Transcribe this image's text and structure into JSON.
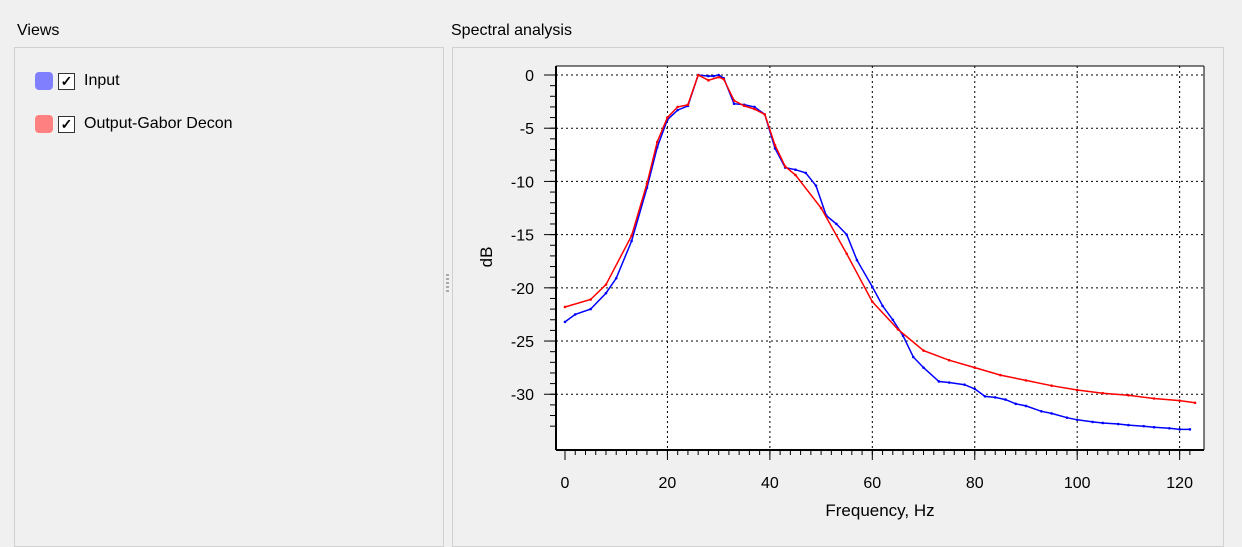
{
  "views": {
    "title": "Views",
    "items": [
      {
        "label": "Input",
        "color": "#8080ff",
        "checked": true
      },
      {
        "label": "Output-Gabor Decon",
        "color": "#ff8080",
        "checked": true
      }
    ]
  },
  "spectral": {
    "title": "Spectral analysis"
  },
  "check_glyph": "✓",
  "chart_data": {
    "type": "line",
    "title": "",
    "xlabel": "Frequency, Hz",
    "ylabel": "dB",
    "xlim": [
      0,
      123
    ],
    "ylim": [
      -33.5,
      0.8
    ],
    "xticks": [
      0,
      20,
      40,
      60,
      80,
      100,
      120
    ],
    "xtick_labels": [
      "0",
      "20",
      "40",
      "60",
      "80",
      "100",
      "120"
    ],
    "yticks": [
      0,
      -5,
      -10,
      -15,
      -20,
      -25,
      -30
    ],
    "ytick_labels": [
      "0",
      "-5",
      "-10",
      "-15",
      "-20",
      "-25",
      "-30"
    ],
    "grid": true,
    "series": [
      {
        "color": "#0000ff",
        "x": [
          0,
          2,
          5,
          8,
          10,
          13,
          16,
          18,
          20,
          22,
          24,
          26,
          28,
          29,
          30,
          31,
          33,
          35,
          37,
          39,
          41,
          43,
          45,
          47,
          49,
          51,
          53,
          55,
          57,
          60,
          62,
          64,
          66,
          68,
          70,
          73,
          75,
          78,
          80,
          82,
          84,
          86,
          88,
          90,
          93,
          95,
          98,
          100,
          103,
          105,
          108,
          110,
          113,
          115,
          118,
          120,
          122
        ],
        "y": [
          -23.2,
          -22.5,
          -22.0,
          -20.5,
          -19.1,
          -15.6,
          -10.6,
          -6.8,
          -4.2,
          -3.3,
          -2.9,
          0.0,
          -0.1,
          -0.1,
          0.0,
          -0.3,
          -2.7,
          -2.8,
          -3.0,
          -3.7,
          -6.9,
          -8.7,
          -8.9,
          -9.2,
          -10.4,
          -13.2,
          -14.0,
          -15.0,
          -17.4,
          -19.9,
          -21.7,
          -23.0,
          -24.5,
          -26.5,
          -27.5,
          -28.8,
          -28.9,
          -29.1,
          -29.5,
          -30.2,
          -30.3,
          -30.5,
          -30.9,
          -31.1,
          -31.6,
          -31.8,
          -32.2,
          -32.4,
          -32.6,
          -32.7,
          -32.8,
          -32.9,
          -33.0,
          -33.1,
          -33.2,
          -33.3,
          -33.3
        ]
      },
      {
        "color": "#ff0000",
        "x": [
          0,
          5,
          8,
          13,
          16,
          18,
          20,
          22,
          24,
          26,
          28,
          30,
          31,
          33,
          35,
          37,
          39,
          41,
          43,
          45,
          50,
          55,
          60,
          65,
          70,
          75,
          80,
          85,
          90,
          95,
          100,
          105,
          110,
          115,
          120,
          123
        ],
        "y": [
          -21.8,
          -21.1,
          -19.7,
          -15.1,
          -10.2,
          -6.3,
          -4.0,
          -3.0,
          -2.8,
          0.0,
          -0.5,
          -0.2,
          -0.4,
          -2.4,
          -2.9,
          -3.2,
          -3.7,
          -6.6,
          -8.6,
          -9.4,
          -12.5,
          -16.8,
          -21.3,
          -23.9,
          -25.9,
          -26.8,
          -27.5,
          -28.2,
          -28.7,
          -29.2,
          -29.6,
          -29.9,
          -30.1,
          -30.4,
          -30.6,
          -30.8
        ]
      }
    ]
  }
}
